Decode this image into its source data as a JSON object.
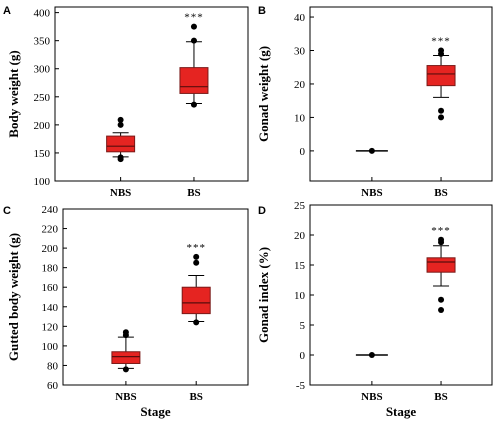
{
  "chart_data": [
    {
      "panel": "A",
      "type": "box",
      "categories": [
        "NBS",
        "BS"
      ],
      "ylabel": "Body weight (g)",
      "xlabel": "",
      "ylim": [
        100,
        410
      ],
      "yticks": [
        100,
        150,
        200,
        250,
        300,
        350,
        400
      ],
      "boxes": [
        {
          "category": "NBS",
          "q1": 152,
          "median": 162,
          "q3": 180,
          "whisker_low": 143,
          "whisker_high": 186,
          "outliers": [
            139,
            142,
            200,
            209
          ]
        },
        {
          "category": "BS",
          "q1": 256,
          "median": 268,
          "q3": 302,
          "whisker_low": 238,
          "whisker_high": 348,
          "outliers": [
            236,
            350,
            375
          ]
        }
      ],
      "annotations": [
        {
          "category": "BS",
          "text": "***"
        }
      ]
    },
    {
      "panel": "B",
      "type": "box",
      "categories": [
        "NBS",
        "BS"
      ],
      "ylabel": "Gonad weight (g)",
      "xlabel": "",
      "ylim": [
        -9,
        43
      ],
      "yticks": [
        0,
        10,
        20,
        30,
        40
      ],
      "boxes": [
        {
          "category": "NBS",
          "q1": 0,
          "median": 0,
          "q3": 0,
          "whisker_low": 0,
          "whisker_high": 0,
          "outliers": [
            0
          ]
        },
        {
          "category": "BS",
          "q1": 19.5,
          "median": 23,
          "q3": 25.5,
          "whisker_low": 16,
          "whisker_high": 28.5,
          "outliers": [
            10,
            12,
            29,
            30
          ]
        }
      ],
      "annotations": [
        {
          "category": "BS",
          "text": "***"
        }
      ]
    },
    {
      "panel": "C",
      "type": "box",
      "categories": [
        "NBS",
        "BS"
      ],
      "ylabel": "Gutted body weight (g)",
      "xlabel": "Stage",
      "ylim": [
        60,
        240
      ],
      "yticks": [
        60,
        80,
        100,
        120,
        140,
        160,
        180,
        200,
        220,
        240
      ],
      "boxes": [
        {
          "category": "NBS",
          "q1": 82,
          "median": 89,
          "q3": 94,
          "whisker_low": 77,
          "whisker_high": 109,
          "outliers": [
            76,
            111,
            114
          ]
        },
        {
          "category": "BS",
          "q1": 133,
          "median": 144,
          "q3": 160,
          "whisker_low": 125,
          "whisker_high": 172,
          "outliers": [
            124,
            185,
            191
          ]
        }
      ],
      "annotations": [
        {
          "category": "BS",
          "text": "***"
        }
      ]
    },
    {
      "panel": "D",
      "type": "box",
      "categories": [
        "NBS",
        "BS"
      ],
      "ylabel": "Gonad index (%)",
      "xlabel": "Stage",
      "ylim": [
        -5,
        25
      ],
      "yticks": [
        -5,
        0,
        5,
        10,
        15,
        20,
        25
      ],
      "boxes": [
        {
          "category": "NBS",
          "q1": 0,
          "median": 0,
          "q3": 0,
          "whisker_low": 0,
          "whisker_high": 0,
          "outliers": [
            0
          ]
        },
        {
          "category": "BS",
          "q1": 13.8,
          "median": 15.5,
          "q3": 16.2,
          "whisker_low": 11.5,
          "whisker_high": 18.2,
          "outliers": [
            7.5,
            9.2,
            18.8,
            19.2
          ]
        }
      ],
      "annotations": [
        {
          "category": "BS",
          "text": "***"
        }
      ]
    }
  ],
  "colors": {
    "box_fill": "#e52421",
    "box_edge": "#7a1a18",
    "axis": "#000000"
  }
}
